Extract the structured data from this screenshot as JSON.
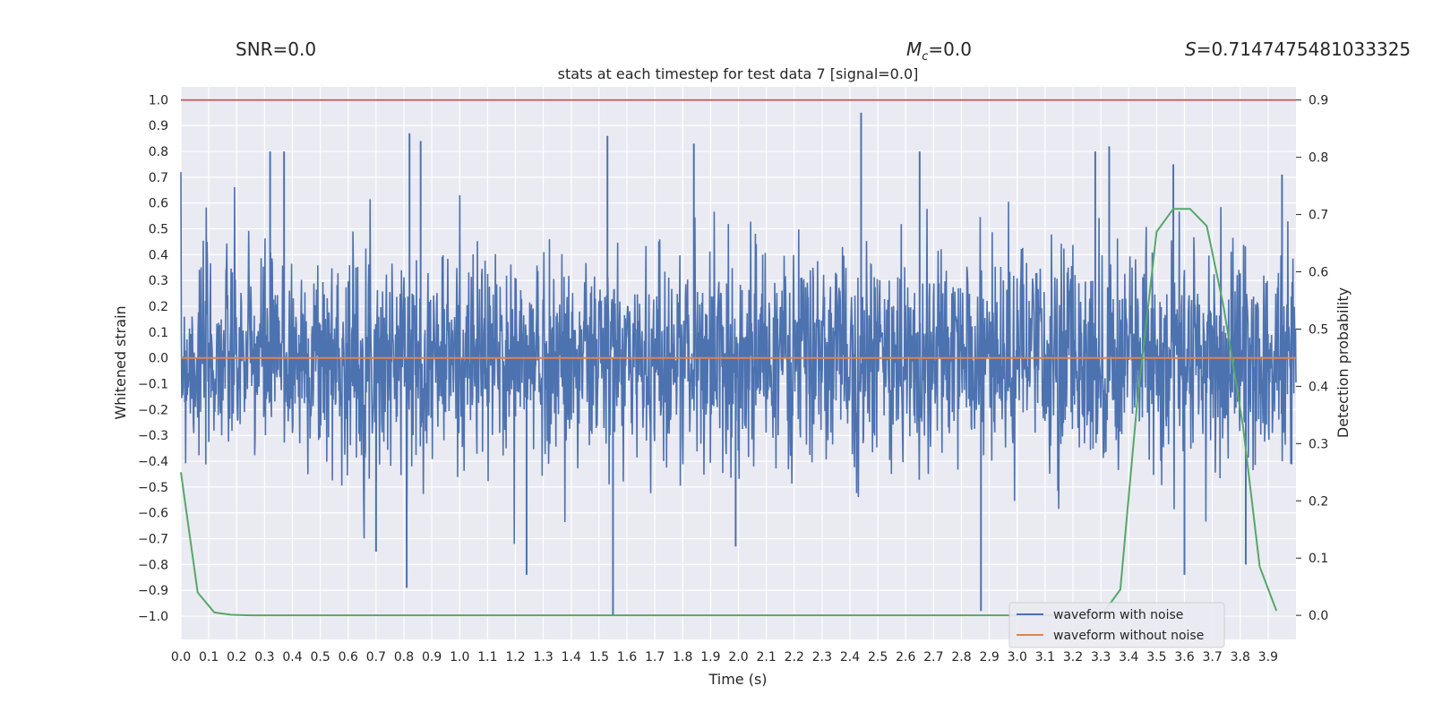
{
  "header": {
    "snr": "SNR=0.0",
    "mc_symbol": "M",
    "mc_sub": "c",
    "mc_value": "=0.0",
    "s_symbol": "S",
    "s_value": "=0.7147475481033325"
  },
  "chart_data": {
    "type": "line",
    "title": "stats at each timestep for test data 7 [signal=0.0]",
    "xlabel": "Time (s)",
    "ylabel_left": "Whitened strain",
    "ylabel_right": "Detection probability",
    "xlim": [
      0.0,
      4.0
    ],
    "ylim_left": [
      -1.09,
      1.05
    ],
    "ylim_right": [
      -0.042,
      0.923
    ],
    "grid": true,
    "legend_position": "lower-right",
    "x_ticks": [
      "0.0",
      "0.1",
      "0.2",
      "0.3",
      "0.4",
      "0.5",
      "0.6",
      "0.7",
      "0.8",
      "0.9",
      "1.0",
      "1.1",
      "1.2",
      "1.3",
      "1.4",
      "1.5",
      "1.6",
      "1.7",
      "1.8",
      "1.9",
      "2.0",
      "2.1",
      "2.2",
      "2.3",
      "2.4",
      "2.5",
      "2.6",
      "2.7",
      "2.8",
      "2.9",
      "3.0",
      "3.1",
      "3.2",
      "3.3",
      "3.4",
      "3.5",
      "3.6",
      "3.7",
      "3.8",
      "3.9"
    ],
    "y_ticks_left": [
      "1.0",
      "0.9",
      "0.8",
      "0.7",
      "0.6",
      "0.5",
      "0.4",
      "0.3",
      "0.2",
      "0.1",
      "0.0",
      "−0.1",
      "−0.2",
      "−0.3",
      "−0.4",
      "−0.5",
      "−0.6",
      "−0.7",
      "−0.8",
      "−0.9",
      "−1.0"
    ],
    "y_ticks_right": [
      "0.9",
      "0.8",
      "0.7",
      "0.6",
      "0.5",
      "0.4",
      "0.3",
      "0.2",
      "0.1",
      "0.0"
    ],
    "threshold": 0.9,
    "series": [
      {
        "name": "waveform with noise",
        "color": "#4c72b0",
        "axis": "left",
        "noise_std": 0.2,
        "spikes": [
          [
            0.32,
            0.8
          ],
          [
            0.37,
            0.8
          ],
          [
            0.82,
            0.87
          ],
          [
            0.86,
            0.84
          ],
          [
            1.53,
            0.86
          ],
          [
            1.84,
            0.83
          ],
          [
            2.44,
            0.95
          ],
          [
            2.65,
            0.8
          ],
          [
            3.28,
            0.8
          ],
          [
            3.33,
            0.82
          ],
          [
            3.56,
            0.75
          ],
          [
            3.95,
            0.71
          ],
          [
            0.81,
            -0.89
          ],
          [
            1.55,
            -1.0
          ],
          [
            2.87,
            -0.98
          ],
          [
            3.6,
            -0.84
          ],
          [
            0.7,
            -0.75
          ],
          [
            1.24,
            -0.84
          ],
          [
            1.99,
            -0.73
          ],
          [
            3.82,
            -0.8
          ]
        ]
      },
      {
        "name": "waveform without noise",
        "color": "#dd8452",
        "axis": "left",
        "x": [
          0.0,
          4.0
        ],
        "y": [
          0.0,
          0.0
        ]
      },
      {
        "name": "detection probability",
        "color": "#55a868",
        "axis": "right",
        "x": [
          0.0,
          0.06,
          0.12,
          0.18,
          0.25,
          3.25,
          3.31,
          3.37,
          3.43,
          3.5,
          3.56,
          3.62,
          3.68,
          3.74,
          3.81,
          3.87,
          3.93
        ],
        "y": [
          0.25,
          0.04,
          0.005,
          0.001,
          0.0,
          0.0,
          0.005,
          0.045,
          0.37,
          0.67,
          0.71,
          0.71,
          0.68,
          0.54,
          0.33,
          0.085,
          0.008
        ]
      }
    ],
    "threshold_color": "#c44e52"
  }
}
